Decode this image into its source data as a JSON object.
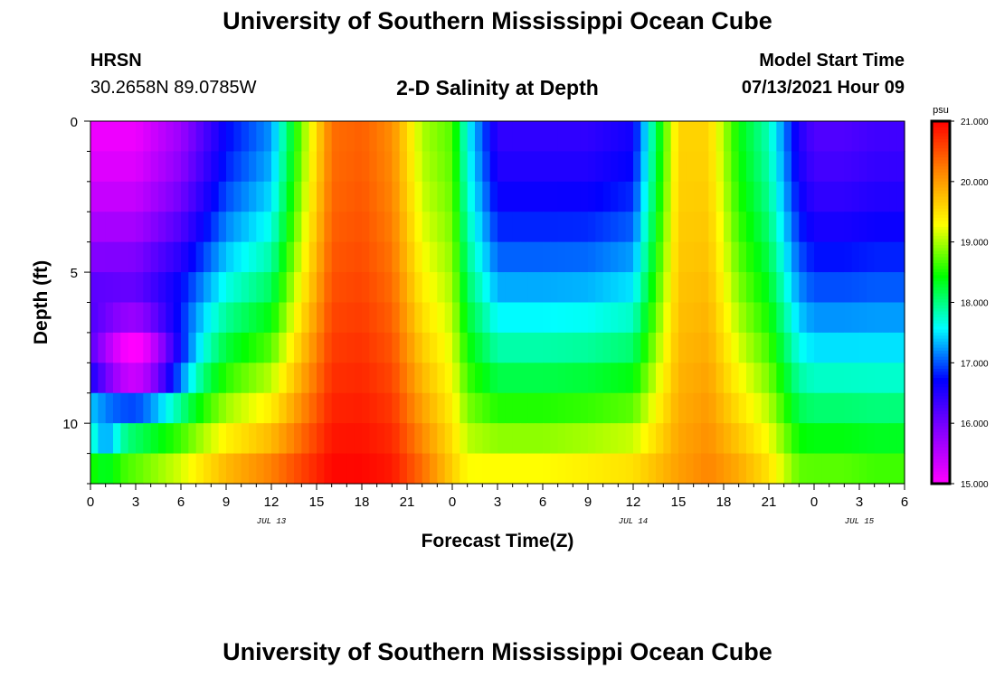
{
  "header": {
    "title": "University of Southern Mississippi Ocean Cube",
    "station": "HRSN",
    "coordinates": "30.2658N  89.0785W",
    "subtitle": "2-D Salinity at Depth",
    "model_start_label": "Model Start Time",
    "model_start_value": "07/13/2021 Hour 09"
  },
  "footer": {
    "title": "University of Southern Mississippi Ocean Cube"
  },
  "chart_data": {
    "type": "heatmap",
    "title": "2-D Salinity at Depth",
    "xlabel": "Forecast Time(Z)",
    "ylabel": "Depth (ft)",
    "x_tick_labels": [
      "0",
      "3",
      "6",
      "9",
      "12",
      "15",
      "18",
      "21",
      "0",
      "3",
      "6",
      "9",
      "12",
      "15",
      "18",
      "21",
      "0",
      "3",
      "6"
    ],
    "x_range_hours": [
      0,
      54
    ],
    "date_labels": [
      {
        "label": "JUL 13",
        "hour": 12
      },
      {
        "label": "JUL 14",
        "hour": 36
      },
      {
        "label": "JUL 15",
        "hour": 51
      }
    ],
    "y_tick_labels": [
      "0",
      "5",
      "10"
    ],
    "y_ticks": [
      0,
      5,
      10
    ],
    "y_range_ft": [
      0,
      12
    ],
    "depths_ft": [
      0.5,
      1.5,
      2.5,
      3.5,
      4.5,
      5.5,
      6.5,
      7.5,
      8.5,
      9.5,
      10.5,
      11.5
    ],
    "colorbar": {
      "unit": "psu",
      "min": 15.0,
      "max": 21.0,
      "tick_values": [
        15,
        16,
        17,
        18,
        19,
        20,
        21
      ],
      "tick_labels": [
        "15.000",
        "16.000",
        "17.000",
        "18.000",
        "19.000",
        "20.000",
        "21.000"
      ],
      "colors": [
        "#ff00ff",
        "#8800ff",
        "#0000ff",
        "#00ffff",
        "#00ff00",
        "#ffff00",
        "#ff8800",
        "#ff0000"
      ]
    },
    "salinity_profile": {
      "time_hours": [
        0,
        3,
        6,
        9,
        12,
        14,
        16,
        18,
        20,
        22,
        24,
        25,
        27,
        30,
        33,
        36,
        37,
        39,
        41,
        43,
        45,
        47,
        48,
        50,
        52,
        54
      ],
      "surface_psu": [
        15.1,
        15.1,
        15.7,
        16.7,
        17.2,
        18.8,
        20.3,
        20.4,
        20.1,
        19.0,
        18.7,
        17.6,
        16.4,
        16.4,
        16.4,
        16.6,
        17.6,
        19.6,
        19.6,
        18.4,
        17.8,
        16.5,
        16.2,
        16.2,
        16.3,
        16.3
      ],
      "bottom_psu": [
        18.9,
        19.0,
        19.4,
        20.0,
        20.4,
        20.7,
        21.0,
        21.0,
        20.9,
        20.4,
        19.7,
        19.4,
        19.5,
        19.5,
        19.6,
        19.7,
        19.8,
        20.0,
        20.2,
        20.0,
        19.6,
        18.9,
        18.9,
        18.9,
        18.8,
        18.8
      ]
    },
    "anomalies": [
      {
        "time_hours": [
          0,
          6
        ],
        "depth_ft": [
          6.5,
          9.5
        ],
        "amp_psu": -2.2
      },
      {
        "time_hours": [
          0,
          2
        ],
        "depth_ft": [
          10.0,
          11.5
        ],
        "amp_psu": -0.9
      }
    ]
  }
}
